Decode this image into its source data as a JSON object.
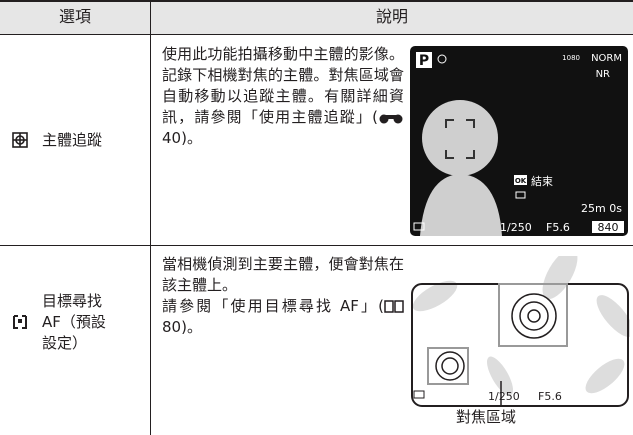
{
  "table": {
    "header": [
      "選項",
      "說明"
    ],
    "rows": [
      {
        "option": "主體追蹤",
        "description": [
          "使用此功能拍攝移動中主體的影像。記錄下相機對焦的主體。對焦區域會自動移動以追蹤主體。有關詳細資訊，請參閱「使用主體追蹤」(",
          "40)。"
        ],
        "screen": {
          "mode": "P",
          "movie": "1080",
          "quality": "NORM",
          "nr": "NR",
          "button": "OK",
          "action": "結束",
          "time": "25m 0s",
          "shutter": "1/250",
          "aperture": "F5.6",
          "remaining": "840"
        }
      },
      {
        "option": "目標尋找 AF（預設設定）",
        "description": [
          "當相機偵測到主要主體，便會對焦在該主體上。",
          "請參閱「使用目標尋找 AF」(",
          "80)。"
        ],
        "screen": {
          "shutter": "1/250",
          "aperture": "F5.6",
          "caption": "對焦區域"
        }
      }
    ]
  }
}
